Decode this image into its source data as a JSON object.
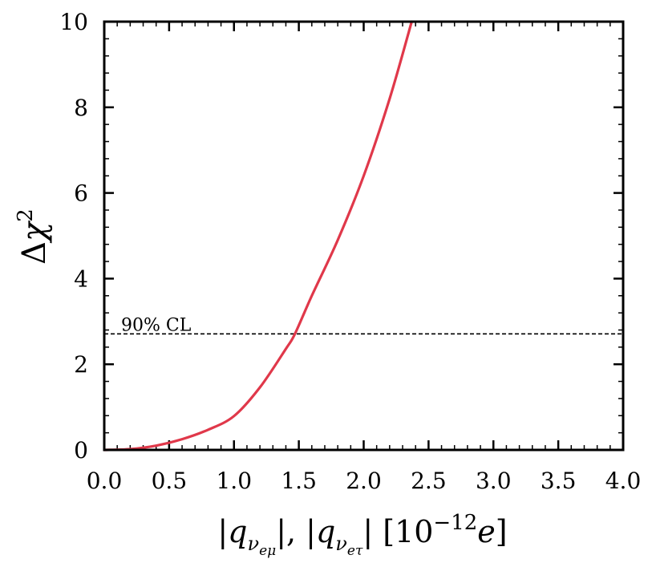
{
  "chart_data": {
    "type": "line",
    "title": "",
    "xlabel": "|q_{ν_eμ}|, |q_{ν_eτ}| [10^{-12}e]",
    "ylabel": "Δχ^2",
    "xlim": [
      0.0,
      4.0
    ],
    "ylim": [
      0,
      10
    ],
    "x_ticks": [
      "0.0",
      "0.5",
      "1.0",
      "1.5",
      "2.0",
      "2.5",
      "3.0",
      "3.5",
      "4.0"
    ],
    "y_ticks": [
      "0",
      "2",
      "4",
      "6",
      "8",
      "10"
    ],
    "grid": false,
    "series": [
      {
        "color": "#e0384a",
        "x": [
          0.0,
          0.2,
          0.4,
          0.6,
          0.8,
          1.0,
          1.2,
          1.4,
          1.47,
          1.6,
          1.8,
          2.0,
          2.2,
          2.37
        ],
        "y": [
          0.0,
          0.02,
          0.1,
          0.25,
          0.47,
          0.79,
          1.46,
          2.36,
          2.71,
          3.6,
          4.9,
          6.4,
          8.2,
          10.0
        ]
      }
    ],
    "reference_lines": [
      {
        "y": 2.71,
        "style": "dashed",
        "color": "#000000",
        "label": "90% CL"
      }
    ]
  }
}
